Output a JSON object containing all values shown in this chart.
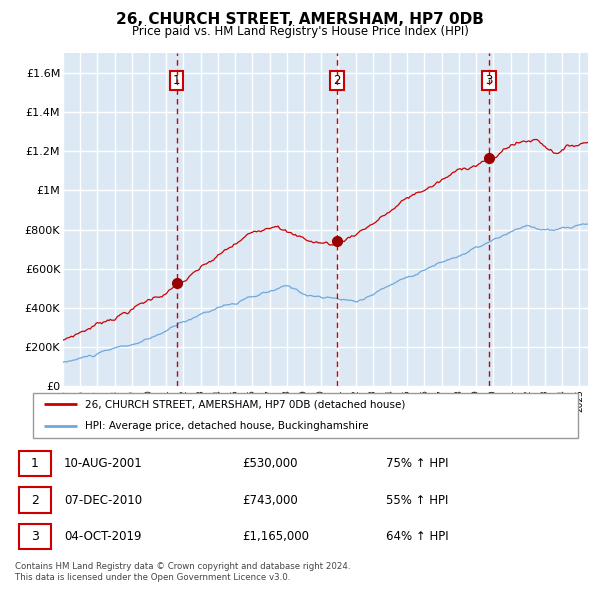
{
  "title": "26, CHURCH STREET, AMERSHAM, HP7 0DB",
  "subtitle": "Price paid vs. HM Land Registry's House Price Index (HPI)",
  "red_label": "26, CHURCH STREET, AMERSHAM, HP7 0DB (detached house)",
  "blue_label": "HPI: Average price, detached house, Buckinghamshire",
  "footer_line1": "Contains HM Land Registry data © Crown copyright and database right 2024.",
  "footer_line2": "This data is licensed under the Open Government Licence v3.0.",
  "transactions": [
    {
      "num": 1,
      "date": "10-AUG-2001",
      "price": "£530,000",
      "hpi": "75% ↑ HPI",
      "year": 2001.6,
      "price_val": 530000
    },
    {
      "num": 2,
      "date": "07-DEC-2010",
      "price": "£743,000",
      "hpi": "55% ↑ HPI",
      "year": 2010.92,
      "price_val": 743000
    },
    {
      "num": 3,
      "date": "04-OCT-2019",
      "price": "£1,165,000",
      "hpi": "64% ↑ HPI",
      "year": 2019.75,
      "price_val": 1165000
    }
  ],
  "ylim": [
    0,
    1700000
  ],
  "yticks": [
    0,
    200000,
    400000,
    600000,
    800000,
    1000000,
    1200000,
    1400000,
    1600000
  ],
  "ytick_labels": [
    "£0",
    "£200K",
    "£400K",
    "£600K",
    "£800K",
    "£1M",
    "£1.2M",
    "£1.4M",
    "£1.6M"
  ],
  "background_color": "#dce9f5",
  "grid_color": "#ffffff",
  "red_color": "#cc0000",
  "blue_color": "#6fa8dc",
  "dot_color": "#990000",
  "xmin": 1995,
  "xmax": 2025.5
}
